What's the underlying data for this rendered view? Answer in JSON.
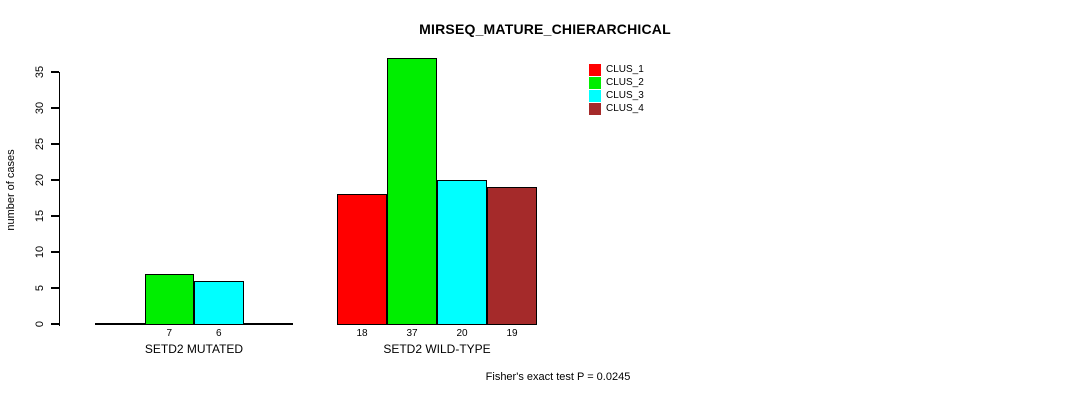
{
  "chart_data": {
    "type": "bar",
    "title": "MIRSEQ_MATURE_CHIERARCHICAL",
    "ylabel": "number of cases",
    "ylim": [
      0,
      35
    ],
    "yticks": [
      0,
      5,
      10,
      15,
      20,
      25,
      30,
      35
    ],
    "grid": false,
    "legend_position": "top-right-inside",
    "categories": [
      "SETD2 MUTATED",
      "SETD2 WILD-TYPE"
    ],
    "series": [
      {
        "name": "CLUS_1",
        "color": "#ff0000",
        "values": [
          0,
          18
        ]
      },
      {
        "name": "CLUS_2",
        "color": "#00ee00",
        "values": [
          7,
          37
        ]
      },
      {
        "name": "CLUS_3",
        "color": "#00ffff",
        "values": [
          6,
          20
        ]
      },
      {
        "name": "CLUS_4",
        "color": "#a52a2a",
        "values": [
          0,
          19
        ]
      }
    ],
    "bar_value_labels": {
      "SETD2 MUTATED": [
        "7",
        "6"
      ],
      "SETD2 WILD-TYPE": [
        "18",
        "37",
        "20",
        "19"
      ]
    },
    "footnote": "Fisher's exact test P = 0.0245"
  },
  "colors": {
    "background": "#ffffff",
    "axis": "#000000",
    "text": "#000000",
    "bar_border": "#000000"
  }
}
